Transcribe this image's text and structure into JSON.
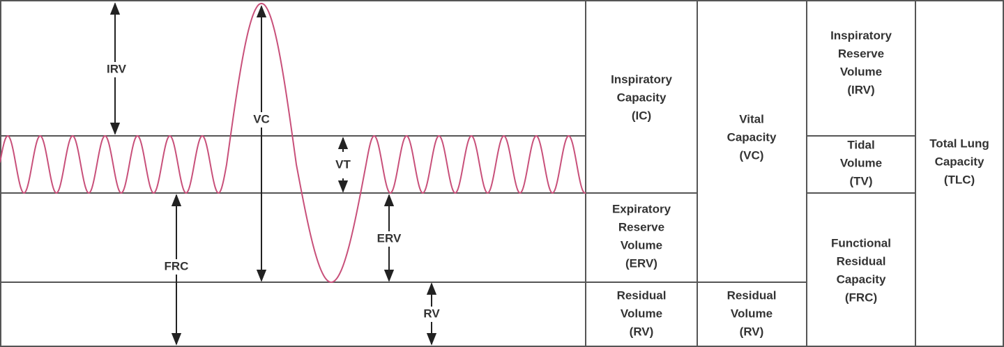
{
  "labels": [
    "IRV",
    "VC",
    "VT",
    "FRC",
    "ERV",
    "RV"
  ],
  "cells": [
    {
      "lines": [
        "Inspiratory",
        "Capacity",
        "(IC)"
      ]
    },
    {
      "lines": [
        "Expiratory",
        "Reserve",
        "Volume",
        "(ERV)"
      ]
    },
    {
      "lines": [
        "Residual",
        "Volume",
        "(RV)"
      ]
    },
    {
      "lines": [
        "Vital",
        "Capacity",
        "(VC)"
      ]
    },
    {
      "lines": [
        "Residual",
        "Volume",
        "(RV)"
      ]
    },
    {
      "lines": [
        "Inspiratory",
        "Reserve",
        "Volume",
        "(IRV)"
      ]
    },
    {
      "lines": [
        "Tidal",
        "Volume",
        "(TV)"
      ]
    },
    {
      "lines": [
        "Functional",
        "Residual",
        "Capacity",
        "(FRC)"
      ]
    },
    {
      "lines": [
        "Total Lung",
        "Capacity",
        "(TLC)"
      ]
    }
  ]
}
